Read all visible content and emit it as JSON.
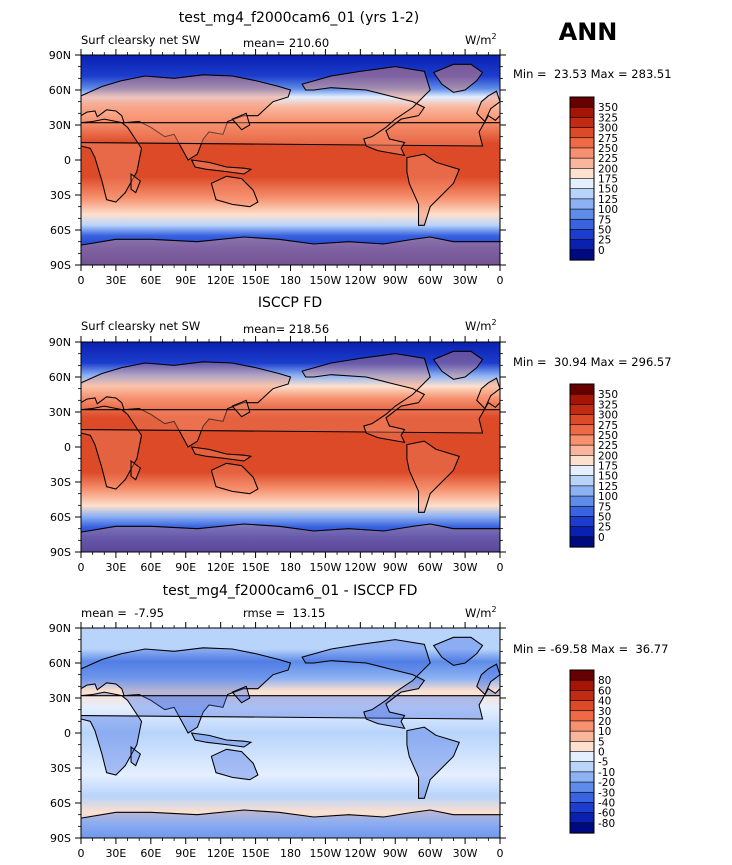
{
  "season": "ANN",
  "chart_data": [
    {
      "type": "heatmap",
      "title": "test_mg4_f2000cam6_01 (yrs 1-2)",
      "left_label": "Surf clearsky net SW",
      "center_label": "mean= 210.60",
      "right_label": "W/m",
      "right_label_sup": "2",
      "mean": 210.6,
      "min": 23.53,
      "max": 283.51,
      "minmax_text": "Min =  23.53 Max = 283.51",
      "xticks": [
        "0",
        "30E",
        "60E",
        "90E",
        "120E",
        "150E",
        "180",
        "150W",
        "120W",
        "90W",
        "60W",
        "30W",
        "0"
      ],
      "yticks": [
        "90N",
        "60N",
        "30N",
        "0",
        "30S",
        "60S",
        "90S"
      ],
      "xlim": [
        0,
        360
      ],
      "ylim": [
        -90,
        90
      ],
      "levels": [
        "350",
        "325",
        "300",
        "275",
        "250",
        "225",
        "200",
        "175",
        "150",
        "125",
        "100",
        "75",
        "50",
        "25",
        "0"
      ],
      "colors": [
        "#670000",
        "#a51505",
        "#c22b13",
        "#dc4a28",
        "#ee6a45",
        "#f6906e",
        "#fab69c",
        "#fde0cd",
        "#e4efff",
        "#b8d4fb",
        "#8db2f4",
        "#5f8ce8",
        "#3a63df",
        "#1c3dcd",
        "#0a20b0",
        "#000a80"
      ]
    },
    {
      "type": "heatmap",
      "title": "ISCCP FD",
      "left_label": "Surf clearsky net SW",
      "center_label": "mean= 218.56",
      "right_label": "W/m",
      "right_label_sup": "2",
      "mean": 218.56,
      "min": 30.94,
      "max": 296.57,
      "minmax_text": "Min =  30.94 Max = 296.57",
      "xticks": [
        "0",
        "30E",
        "60E",
        "90E",
        "120E",
        "150E",
        "180",
        "150W",
        "120W",
        "90W",
        "60W",
        "30W",
        "0"
      ],
      "yticks": [
        "90N",
        "60N",
        "30N",
        "0",
        "30S",
        "60S",
        "90S"
      ],
      "xlim": [
        0,
        360
      ],
      "ylim": [
        -90,
        90
      ],
      "levels": [
        "350",
        "325",
        "300",
        "275",
        "250",
        "225",
        "200",
        "175",
        "150",
        "125",
        "100",
        "75",
        "50",
        "25",
        "0"
      ],
      "colors": [
        "#670000",
        "#a51505",
        "#c22b13",
        "#dc4a28",
        "#ee6a45",
        "#f6906e",
        "#fab69c",
        "#fde0cd",
        "#e4efff",
        "#b8d4fb",
        "#8db2f4",
        "#5f8ce8",
        "#3a63df",
        "#1c3dcd",
        "#0a20b0",
        "#000a80"
      ]
    },
    {
      "type": "heatmap",
      "title": "test_mg4_f2000cam6_01 - ISCCP FD",
      "left_label": "mean =  -7.95",
      "center_label": "rmse =  13.15",
      "right_label": "W/m",
      "right_label_sup": "2",
      "mean": -7.95,
      "rmse": 13.15,
      "min": -69.58,
      "max": 36.77,
      "minmax_text": "Min = -69.58 Max =  36.77",
      "xticks": [
        "0",
        "30E",
        "60E",
        "90E",
        "120E",
        "150E",
        "180",
        "150W",
        "120W",
        "90W",
        "60W",
        "30W",
        "0"
      ],
      "yticks": [
        "90N",
        "60N",
        "30N",
        "0",
        "30S",
        "60S",
        "90S"
      ],
      "xlim": [
        0,
        360
      ],
      "ylim": [
        -90,
        90
      ],
      "levels": [
        "80",
        "60",
        "40",
        "30",
        "20",
        "10",
        "5",
        "0",
        "-5",
        "-10",
        "-20",
        "-30",
        "-40",
        "-60",
        "-80"
      ],
      "colors": [
        "#670000",
        "#a51505",
        "#c22b13",
        "#dc4a28",
        "#ee6a45",
        "#f6906e",
        "#fab69c",
        "#fde0cd",
        "#e4efff",
        "#b8d4fb",
        "#8db2f4",
        "#5f8ce8",
        "#3a63df",
        "#1c3dcd",
        "#0a20b0",
        "#000a80"
      ]
    }
  ]
}
